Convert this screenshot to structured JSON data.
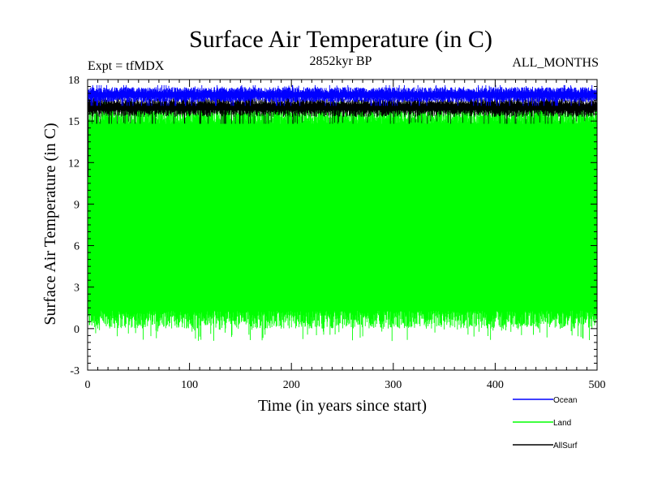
{
  "chart_data": {
    "type": "line",
    "title": "Surface Air Temperature (in C)",
    "subtitle_left": "Expt = tfMDX",
    "subtitle_center": "2852kyr BP",
    "subtitle_right": "ALL_MONTHS",
    "xlabel": "Time (in years since start)",
    "ylabel": "Surface Air Temperature (in C)",
    "xlim": [
      0,
      500
    ],
    "ylim": [
      -3,
      18
    ],
    "xticks": [
      0,
      100,
      200,
      300,
      400,
      500
    ],
    "yticks": [
      -3,
      0,
      3,
      6,
      9,
      12,
      15,
      18
    ],
    "grid": false,
    "legend_position": "bottom-right",
    "series": [
      {
        "name": "Ocean",
        "color": "#0000ff",
        "summary": {
          "min": 16.1,
          "max": 17.6,
          "mean": 16.9
        }
      },
      {
        "name": "Land",
        "color": "#00ff00",
        "summary": {
          "min": -0.9,
          "max": 16.4,
          "mean": 7.5
        }
      },
      {
        "name": "AllSurf",
        "color": "#000000",
        "summary": {
          "min": 14.8,
          "max": 16.9,
          "mean": 16.0
        }
      }
    ]
  }
}
